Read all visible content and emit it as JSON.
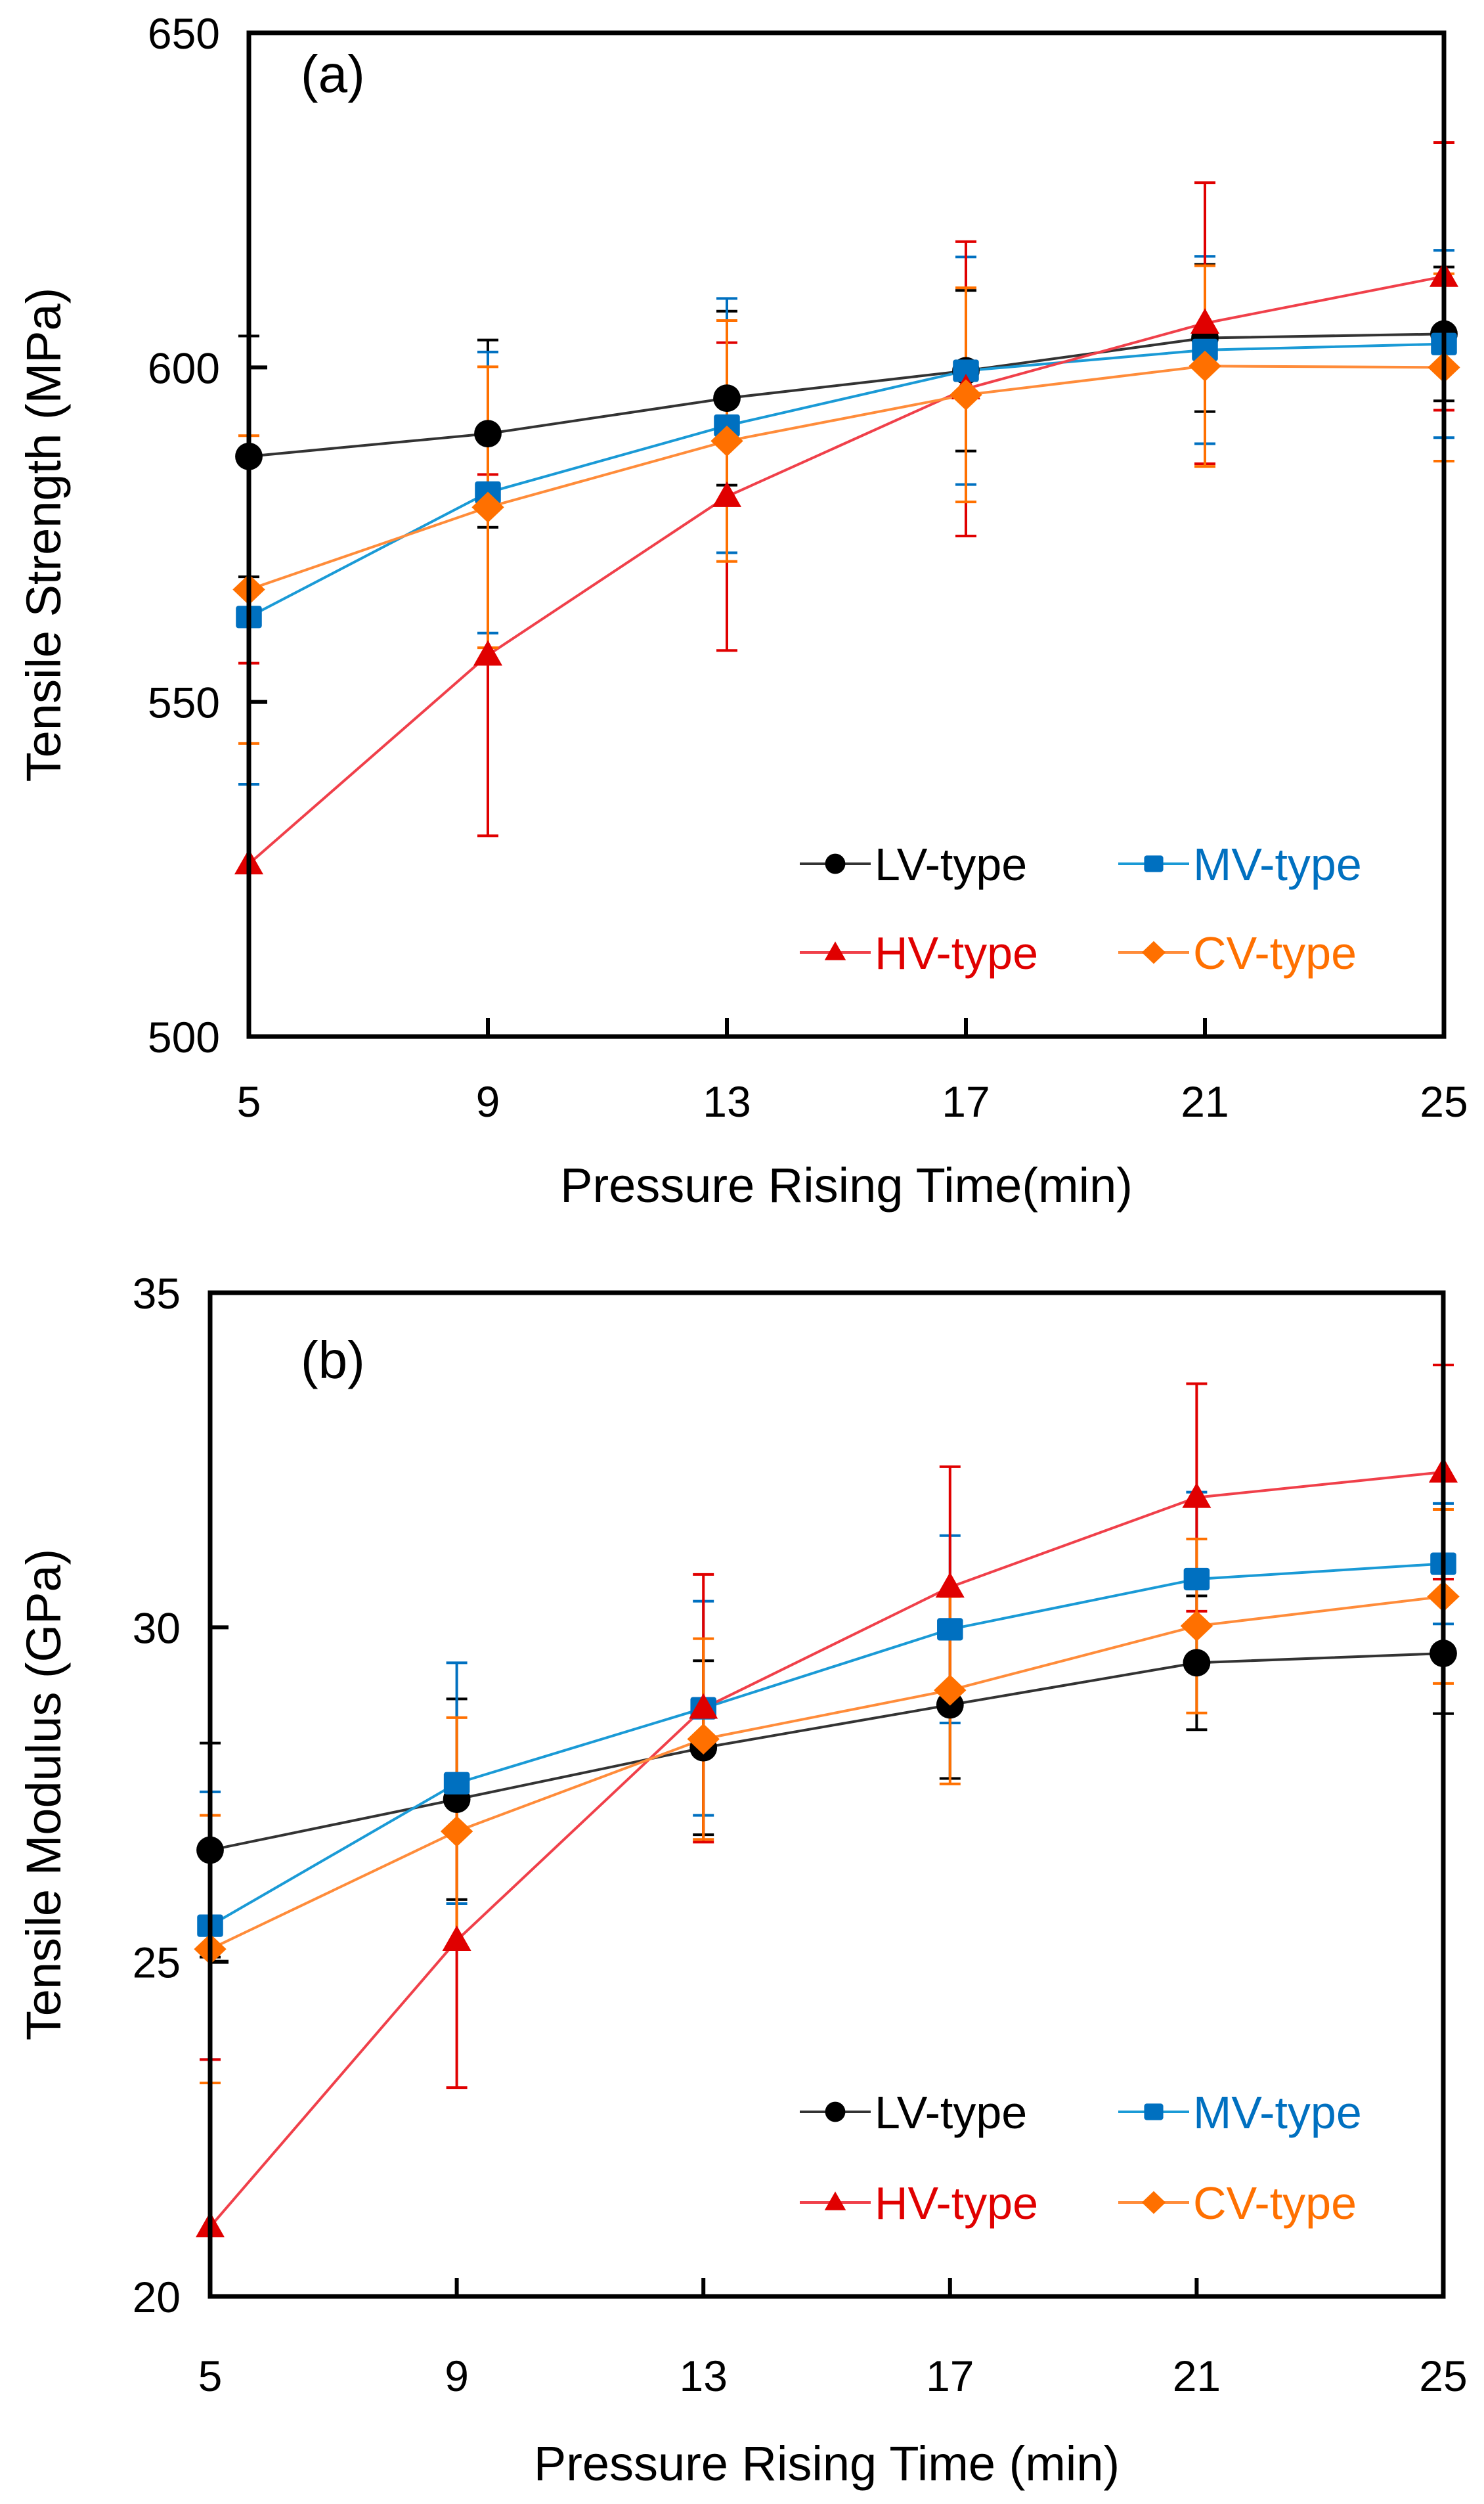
{
  "chart_data": [
    {
      "type": "line",
      "panel_label": "(a)",
      "title": "",
      "xlabel": "Pressure Rising Time(min)",
      "ylabel": "Tensile Strength (MPa)",
      "x": [
        5,
        9,
        13,
        17,
        21,
        25
      ],
      "x_ticks": [
        "5",
        "9",
        "13",
        "17",
        "21",
        "25"
      ],
      "y_ticks": [
        "500",
        "550",
        "600",
        "650"
      ],
      "ylim": [
        500,
        650
      ],
      "xlim": [
        5,
        25
      ],
      "grid": false,
      "legend_position": "bottom-right",
      "series": [
        {
          "name": "LV-type",
          "marker": "circle",
          "color": "#000000",
          "line_color": "#333333",
          "values": [
            586.7,
            590.1,
            595.4,
            599.5,
            604.4,
            605.0
          ],
          "error": [
            18,
            14,
            13,
            12,
            11,
            10
          ]
        },
        {
          "name": "MV-type",
          "marker": "square",
          "color": "#0070C0",
          "line_color": "#1A9AD6",
          "values": [
            562.7,
            581.3,
            591.3,
            599.5,
            602.6,
            603.5
          ],
          "error": [
            25,
            21,
            19,
            17,
            14,
            14
          ]
        },
        {
          "name": "HV-type",
          "marker": "triangle",
          "color": "#E00000",
          "line_color": "#F0404A",
          "values": [
            525.8,
            557.0,
            580.7,
            596.8,
            606.6,
            613.6
          ],
          "error": [
            30,
            27,
            23,
            22,
            21,
            20
          ]
        },
        {
          "name": "CV-type",
          "marker": "diamond",
          "color": "#FF7000",
          "line_color": "#FF8C3A",
          "values": [
            566.8,
            579.1,
            589.0,
            595.9,
            600.2,
            600.0
          ],
          "error": [
            23,
            21,
            18,
            16,
            15,
            14
          ]
        }
      ]
    },
    {
      "type": "line",
      "panel_label": "(b)",
      "title": "",
      "xlabel": "Pressure Rising Time (min)",
      "ylabel": "Tensile Modulus (GPa)",
      "x": [
        5,
        9,
        13,
        17,
        21,
        25
      ],
      "x_ticks": [
        "5",
        "9",
        "13",
        "17",
        "21",
        "25"
      ],
      "y_ticks": [
        "20",
        "25",
        "30",
        "35"
      ],
      "ylim": [
        20,
        35
      ],
      "xlim": [
        5,
        25
      ],
      "grid": false,
      "legend_position": "bottom-right",
      "series": [
        {
          "name": "LV-type",
          "marker": "circle",
          "color": "#000000",
          "line_color": "#333333",
          "values": [
            26.67,
            27.43,
            28.2,
            28.84,
            29.47,
            29.61
          ],
          "error": [
            1.6,
            1.5,
            1.3,
            1.1,
            1.0,
            0.9
          ]
        },
        {
          "name": "MV-type",
          "marker": "square",
          "color": "#0070C0",
          "line_color": "#1A9AD6",
          "values": [
            25.54,
            27.67,
            28.79,
            29.97,
            30.72,
            30.95
          ],
          "error": [
            2.0,
            1.8,
            1.6,
            1.4,
            1.3,
            0.9
          ]
        },
        {
          "name": "HV-type",
          "marker": "triangle",
          "color": "#E00000",
          "line_color": "#F0404A",
          "values": [
            21.04,
            25.32,
            28.79,
            30.6,
            31.94,
            32.32
          ],
          "error": [
            2.5,
            2.2,
            2.0,
            1.8,
            1.7,
            1.6
          ]
        },
        {
          "name": "CV-type",
          "marker": "diamond",
          "color": "#FF7000",
          "line_color": "#FF8C3A",
          "values": [
            25.19,
            26.95,
            28.33,
            29.06,
            30.02,
            30.46
          ],
          "error": [
            2.0,
            1.7,
            1.5,
            1.4,
            1.3,
            1.3
          ]
        }
      ]
    }
  ]
}
